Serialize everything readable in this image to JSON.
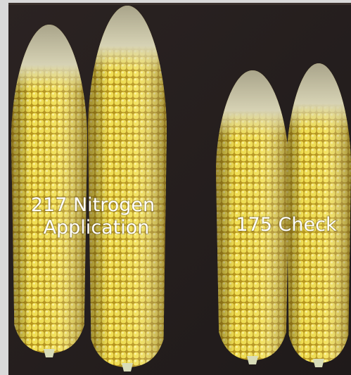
{
  "labels": {
    "left": [
      "217 Nitrogen",
      "Application"
    ],
    "right": "175 Check"
  }
}
